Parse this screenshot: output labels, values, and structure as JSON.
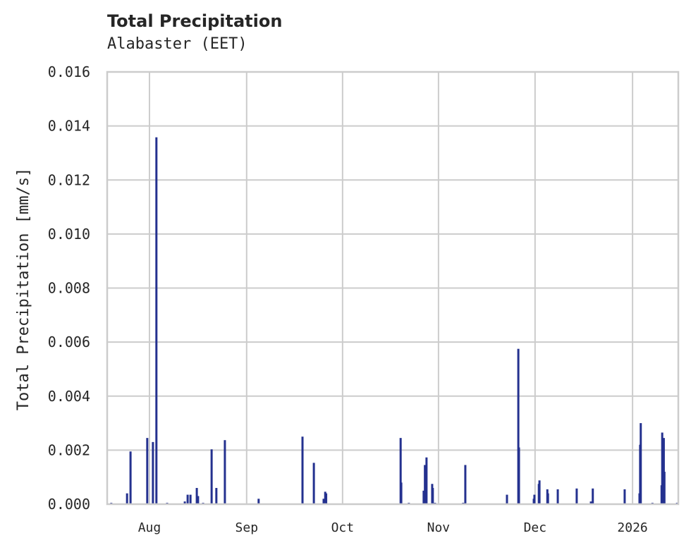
{
  "header": {
    "title": "Total Precipitation",
    "subtitle": "Alabaster (EET)"
  },
  "chart_data": {
    "type": "bar",
    "title": "Total Precipitation",
    "subtitle": "Alabaster (EET)",
    "xlabel": "",
    "ylabel": "Total Precipitation [mm/s]",
    "ylim": [
      0,
      0.016
    ],
    "yticks": [
      "0.000",
      "0.002",
      "0.004",
      "0.006",
      "0.008",
      "0.010",
      "0.012",
      "0.014",
      "0.016"
    ],
    "xticks": [
      {
        "label": "Aug",
        "day": 13.4
      },
      {
        "label": "Sep",
        "day": 44.2
      },
      {
        "label": "Oct",
        "day": 74.6
      },
      {
        "label": "Nov",
        "day": 105.0
      },
      {
        "label": "Dec",
        "day": 135.6
      },
      {
        "label": "2026",
        "day": 166.5
      }
    ],
    "x_domain_days": [
      0,
      181
    ],
    "x_start_label": "2025-07-18",
    "grid": true,
    "legend": null,
    "color": "#24318f",
    "series": [
      {
        "name": "Total Precipitation",
        "points": [
          [
            1.3,
            5e-05
          ],
          [
            6.3,
            0.0004
          ],
          [
            7.4,
            0.00195
          ],
          [
            12.7,
            0.00245
          ],
          [
            14.5,
            0.0023
          ],
          [
            15.6,
            0.01358
          ],
          [
            19.0,
            5e-05
          ],
          [
            24.6,
            0.0001
          ],
          [
            25.5,
            0.00035
          ],
          [
            26.4,
            0.00035
          ],
          [
            28.4,
            0.0006
          ],
          [
            28.8,
            0.0003
          ],
          [
            30.4,
            5e-05
          ],
          [
            33.1,
            0.00203
          ],
          [
            34.6,
            0.0006
          ],
          [
            37.3,
            0.00237
          ],
          [
            48.0,
            0.0002
          ],
          [
            61.9,
            0.0025
          ],
          [
            65.5,
            0.00153
          ],
          [
            68.6,
            0.0002
          ],
          [
            69.1,
            0.00046
          ],
          [
            69.4,
            0.0004
          ],
          [
            93.0,
            0.00245
          ],
          [
            93.2,
            0.0008
          ],
          [
            95.6,
            5e-05
          ],
          [
            100.3,
            0.0005
          ],
          [
            100.7,
            0.00145
          ],
          [
            101.2,
            0.00173
          ],
          [
            103.0,
            0.00075
          ],
          [
            103.2,
            0.0006
          ],
          [
            103.9,
            5e-05
          ],
          [
            112.8,
            5e-05
          ],
          [
            113.5,
            0.00145
          ],
          [
            126.7,
            0.00035
          ],
          [
            130.3,
            0.00575
          ],
          [
            130.5,
            0.0021
          ],
          [
            135.2,
            0.0002
          ],
          [
            135.4,
            0.00035
          ],
          [
            136.8,
            0.00075
          ],
          [
            137.0,
            0.00088
          ],
          [
            139.5,
            0.00055
          ],
          [
            139.7,
            0.0004
          ],
          [
            142.8,
            0.00055
          ],
          [
            148.8,
            0.00058
          ],
          [
            153.3,
            0.0001
          ],
          [
            153.9,
            0.00058
          ],
          [
            164.0,
            0.00055
          ],
          [
            168.7,
            0.0004
          ],
          [
            168.9,
            0.0022
          ],
          [
            169.1,
            0.003
          ],
          [
            172.8,
            5e-05
          ],
          [
            175.7,
            0.0007
          ],
          [
            175.9,
            0.00265
          ],
          [
            176.4,
            0.00245
          ],
          [
            176.6,
            0.0012
          ],
          [
            180.6,
            5e-05
          ]
        ]
      }
    ]
  }
}
